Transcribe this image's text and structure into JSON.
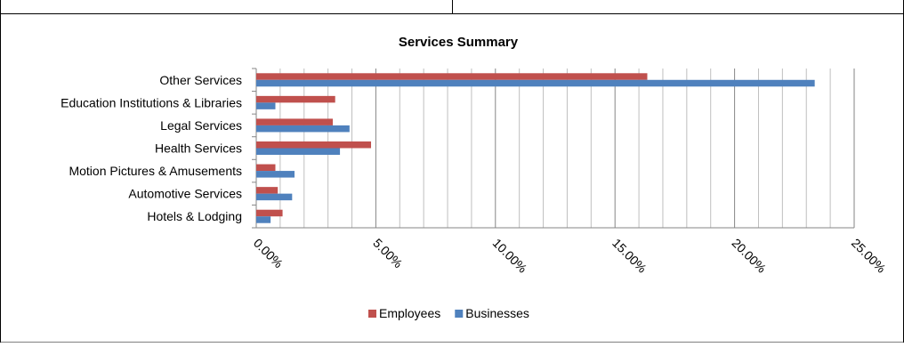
{
  "chart_data": {
    "type": "bar",
    "orientation": "horizontal",
    "title": "Services Summary",
    "categories": [
      "Other Services",
      "Education Institutions & Libraries",
      "Legal Services",
      "Health Services",
      "Motion Pictures & Amusements",
      "Automotive Services",
      "Hotels & Lodging"
    ],
    "series": [
      {
        "name": "Employees",
        "color": "#C0504D",
        "values": [
          16.35,
          3.3,
          3.2,
          4.8,
          0.8,
          0.9,
          1.1
        ]
      },
      {
        "name": "Businesses",
        "color": "#4F81BD",
        "values": [
          23.35,
          0.8,
          3.9,
          3.5,
          1.6,
          1.5,
          0.6
        ]
      }
    ],
    "xlim": [
      0,
      25
    ],
    "x_ticks": [
      "0.00%",
      "5.00%",
      "10.00%",
      "15.00%",
      "20.00%",
      "25.00%"
    ],
    "minor_gridlines_step": 1,
    "grid": true,
    "legend_position": "bottom"
  }
}
